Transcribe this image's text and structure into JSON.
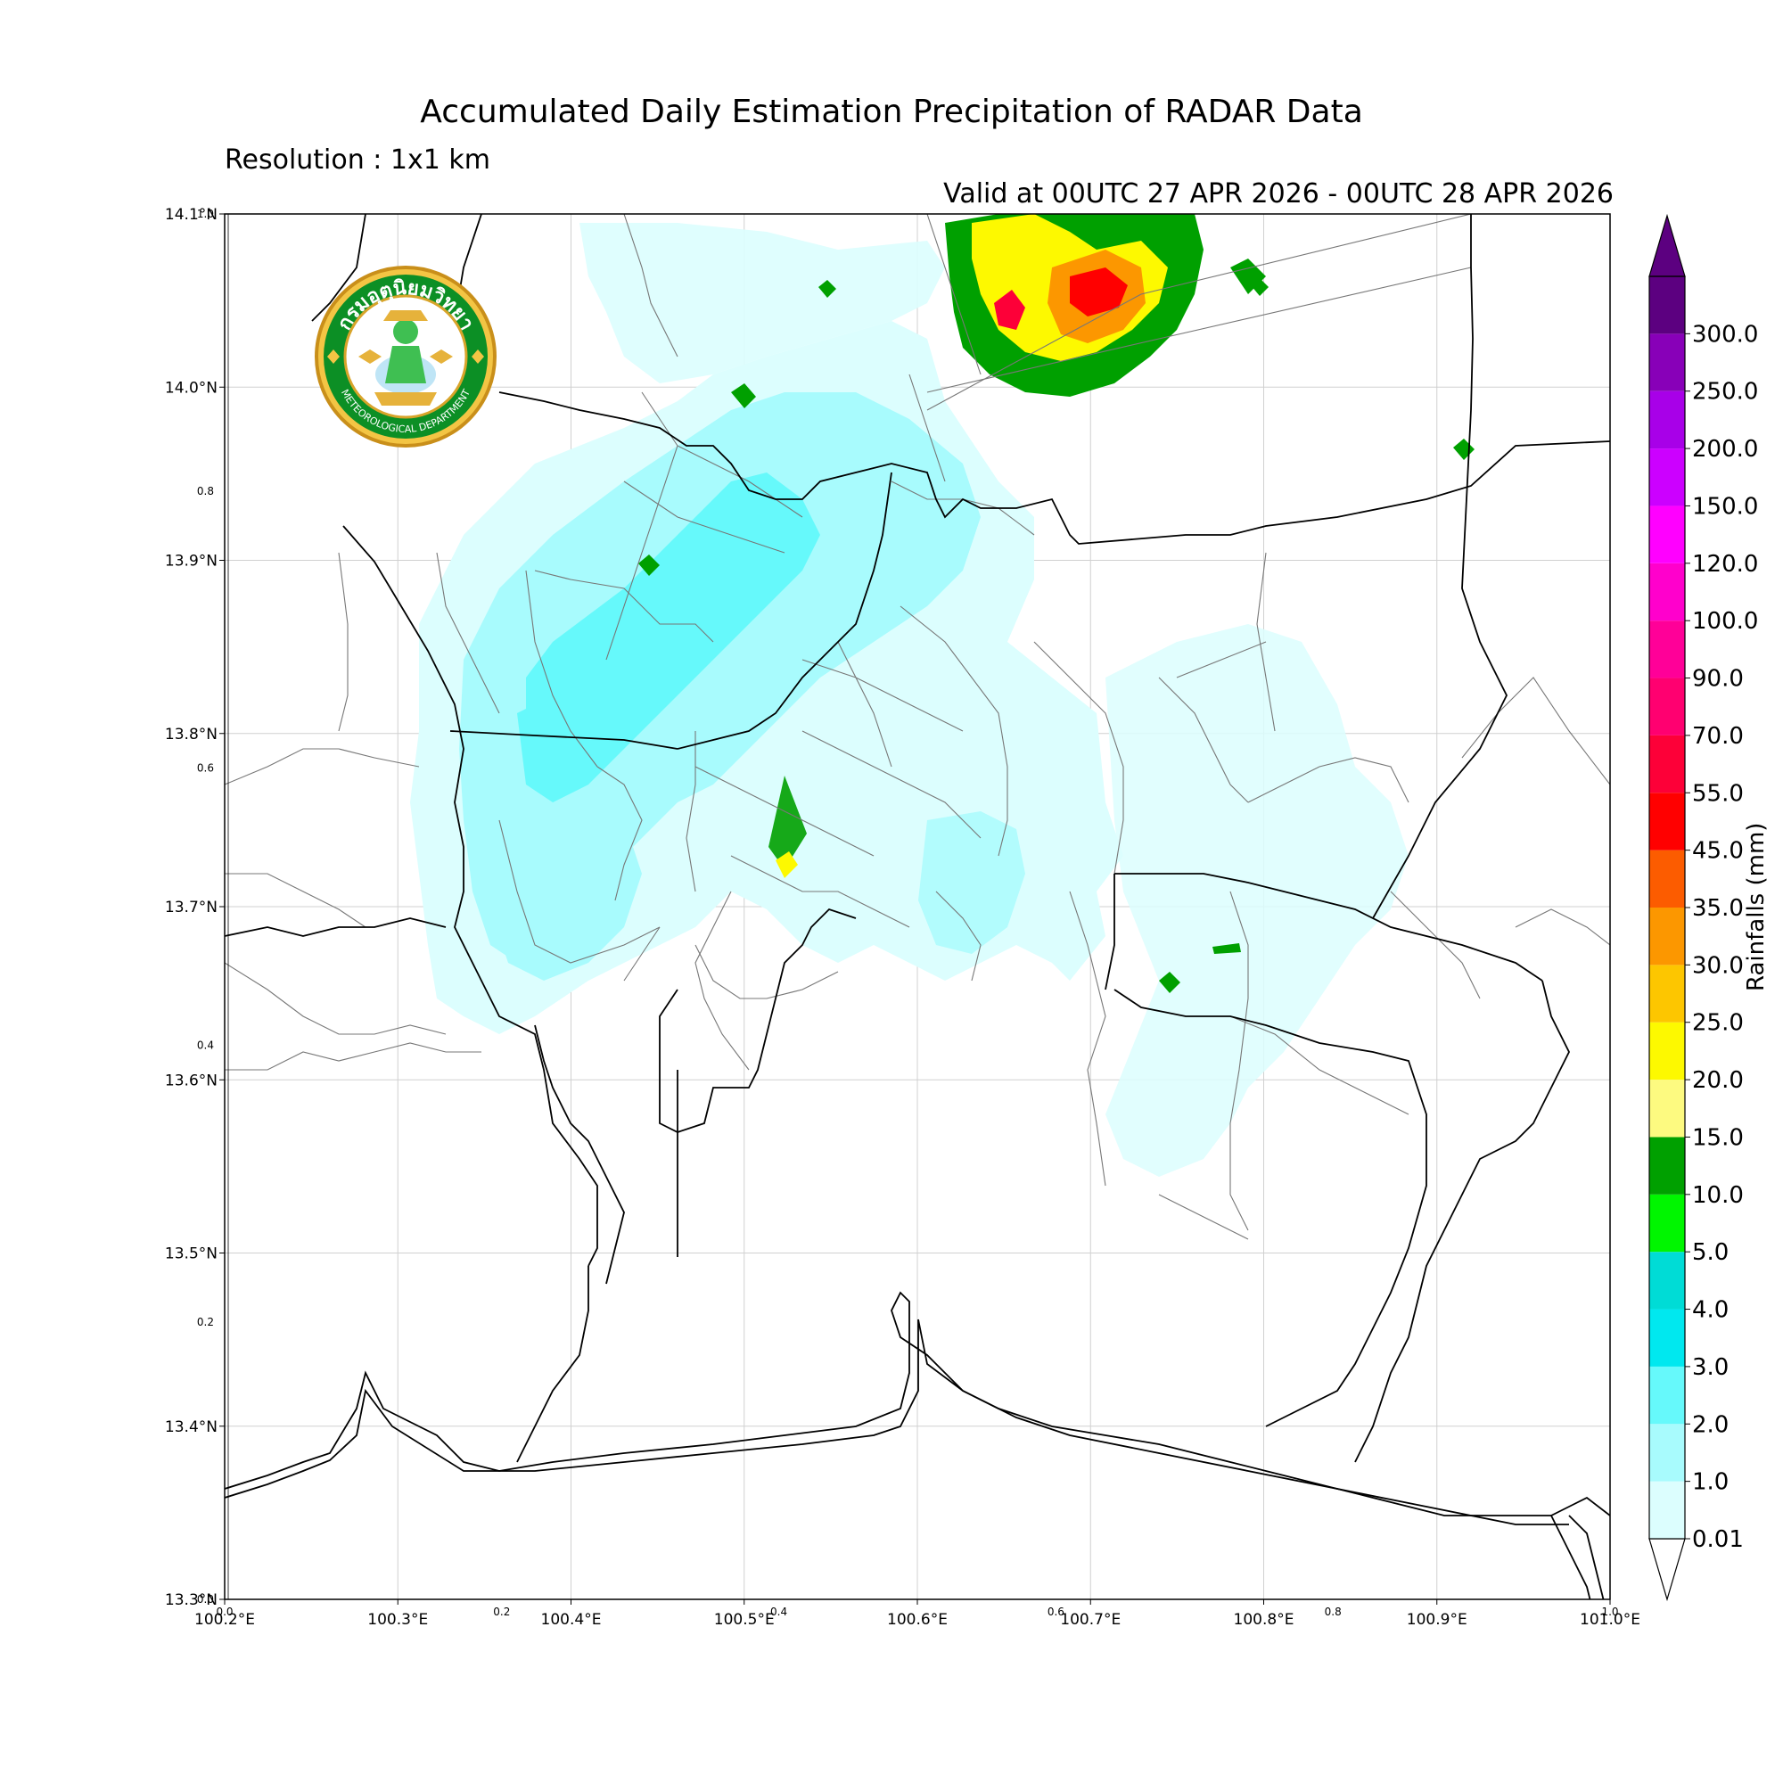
{
  "title": "Accumulated Daily Estimation Precipitation of RADAR Data",
  "resolution": "Resolution : 1x1 km",
  "valid": "Valid at 00UTC 27 APR 2026 - 00UTC 28 APR 2026",
  "logo": {
    "top_text": "กรมอุตุนิยมวิทยา",
    "bottom_text": "METEOROLOGICAL DEPARTMENT",
    "icon": "tmd-emblem-icon"
  },
  "map": {
    "lon_range": [
      100.2,
      101.0
    ],
    "lat_range": [
      13.3,
      14.1
    ],
    "lon_ticks": [
      "100.2°E",
      "100.3°E",
      "100.4°E",
      "100.5°E",
      "100.6°E",
      "100.7°E",
      "100.8°E",
      "100.9°E",
      "101.0°E"
    ],
    "lat_ticks": [
      "13.3°N",
      "13.4°N",
      "13.5°N",
      "13.6°N",
      "13.7°N",
      "13.8°N",
      "13.9°N",
      "14.0°N",
      "14.1°N"
    ],
    "inner_x_ticks": [
      "0.0",
      "0.2",
      "0.4",
      "0.6",
      "0.8",
      "1.0"
    ],
    "inner_y_ticks": [
      "0.0",
      "0.2",
      "0.4",
      "0.6",
      "0.8",
      "1.0"
    ],
    "grid": true,
    "colors": {
      "boundary": "#000000",
      "district": "#777777",
      "grid": "#d0d0d0"
    }
  },
  "colorbar": {
    "title": "Rainfalls (mm)",
    "levels": [
      "0.01",
      "1.0",
      "2.0",
      "3.0",
      "4.0",
      "5.0",
      "10.0",
      "15.0",
      "20.0",
      "25.0",
      "30.0",
      "35.0",
      "45.0",
      "55.0",
      "70.0",
      "90.0",
      "100.0",
      "120.0",
      "150.0",
      "200.0",
      "250.0",
      "300.0"
    ],
    "colors": [
      "#dcfefe",
      "#a8fbfd",
      "#66f9fb",
      "#00e8ef",
      "#00dcd6",
      "#00f600",
      "#00a000",
      "#fdfa80",
      "#fdf900",
      "#fdc600",
      "#fc9700",
      "#fc5c00",
      "#ff0000",
      "#fd0038",
      "#ff0070",
      "#ff0098",
      "#ff00cc",
      "#ff00ff",
      "#cc00ff",
      "#a800e8",
      "#8800b8",
      "#5c0080"
    ]
  }
}
